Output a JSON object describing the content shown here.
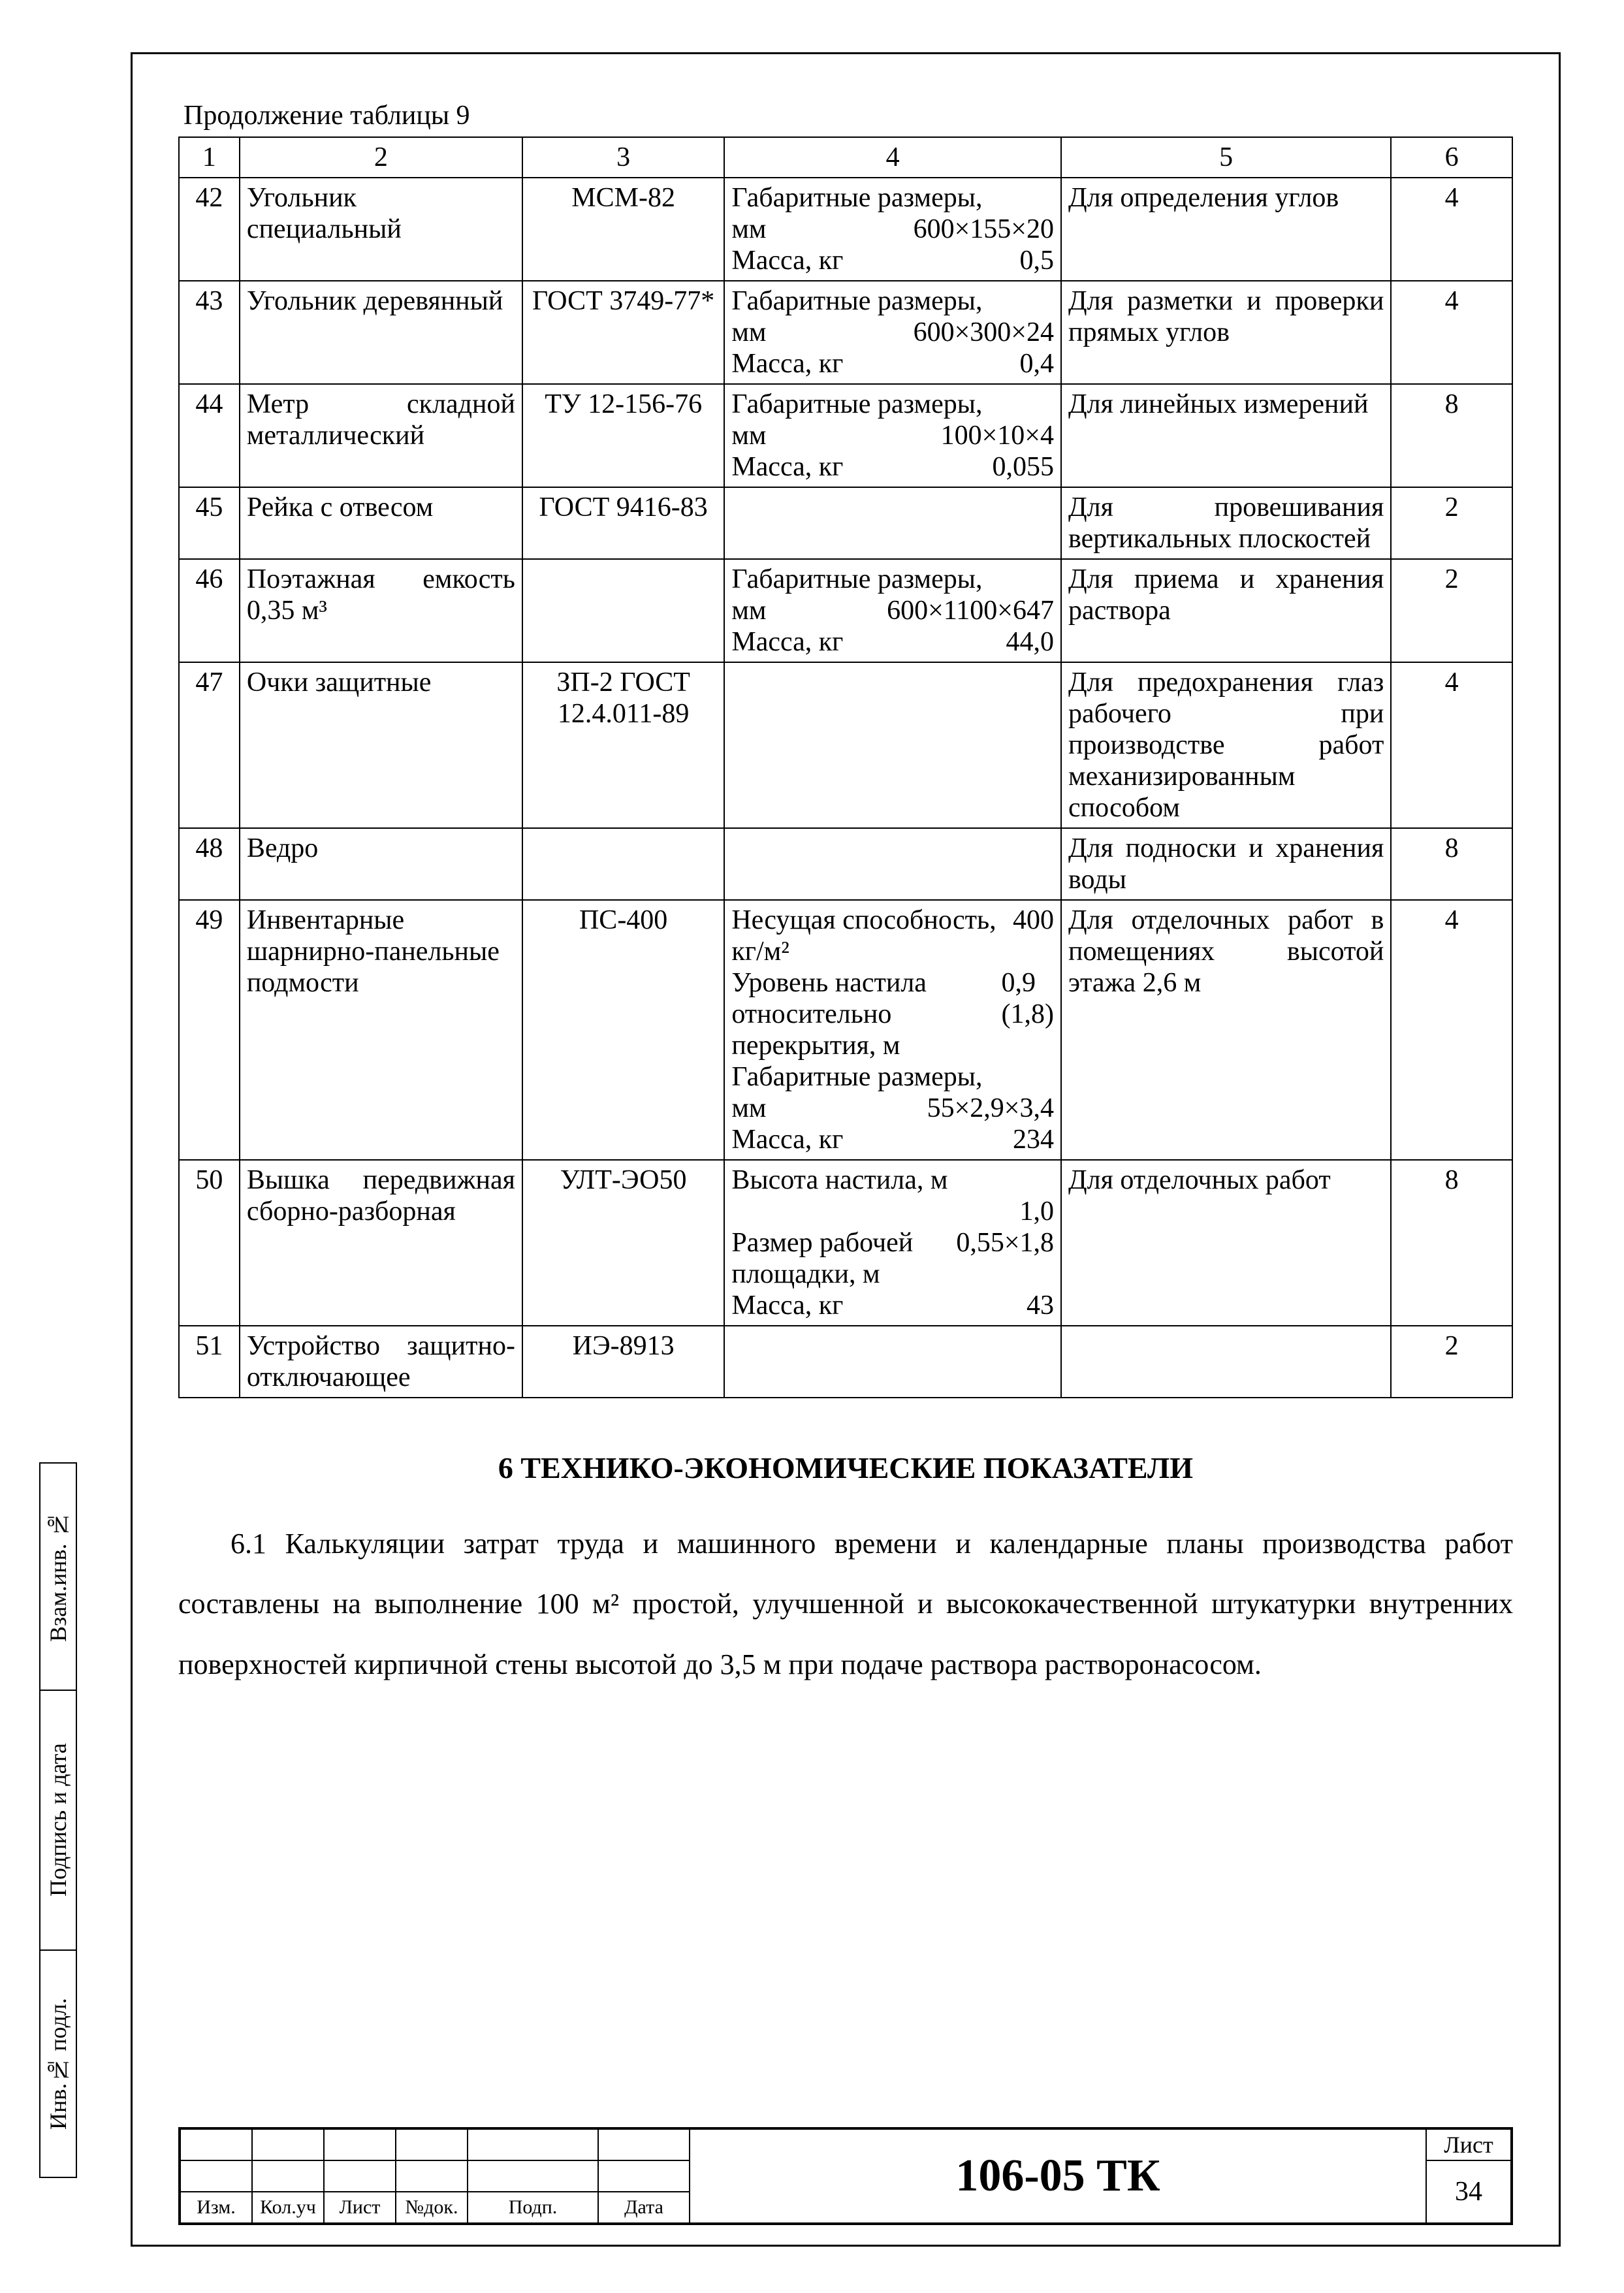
{
  "caption": "Продолжение таблицы 9",
  "headers": [
    "1",
    "2",
    "3",
    "4",
    "5",
    "6"
  ],
  "rows": [
    {
      "n": "42",
      "name": "Угольник специальный",
      "code": "МСМ-82",
      "spec_l1_label": "Габаритные размеры,",
      "spec_l2_label": "мм",
      "spec_l2_val": "600×155×20",
      "spec_l3_label": "Масса, кг",
      "spec_l3_val": "0,5",
      "purpose": "Для определения углов",
      "qty": "4"
    },
    {
      "n": "43",
      "name": "Угольник деревянный",
      "code": "ГОСТ 3749-77*",
      "spec_l1_label": "Габаритные размеры,",
      "spec_l2_label": "мм",
      "spec_l2_val": "600×300×24",
      "spec_l3_label": "Масса, кг",
      "spec_l3_val": "0,4",
      "purpose": "Для разметки и проверки прямых углов",
      "qty": "4"
    },
    {
      "n": "44",
      "name": "Метр складной металлический",
      "code": "ТУ 12-156-76",
      "spec_l1_label": "Габаритные размеры,",
      "spec_l2_label": "мм",
      "spec_l2_val": "100×10×4",
      "spec_l3_label": "Масса, кг",
      "spec_l3_val": "0,055",
      "purpose": "Для линейных измерений",
      "qty": "8"
    },
    {
      "n": "45",
      "name": "Рейка с отвесом",
      "code": "ГОСТ 9416-83",
      "spec_l1_label": "",
      "spec_l2_label": "",
      "spec_l2_val": "",
      "spec_l3_label": "",
      "spec_l3_val": "",
      "purpose": "Для провешивания вертикальных плоскостей",
      "qty": "2"
    },
    {
      "n": "46",
      "name": "Поэтажная емкость 0,35 м³",
      "code": "",
      "spec_l1_label": "Габаритные размеры,",
      "spec_l2_label": "мм",
      "spec_l2_val": "600×1100×647",
      "spec_l3_label": "Масса, кг",
      "spec_l3_val": "44,0",
      "purpose": "Для приема и хранения раствора",
      "qty": "2"
    },
    {
      "n": "47",
      "name": "Очки защитные",
      "code": "ЗП-2 ГОСТ 12.4.011-89",
      "spec_l1_label": "",
      "spec_l2_label": "",
      "spec_l2_val": "",
      "spec_l3_label": "",
      "spec_l3_val": "",
      "purpose": "Для предохранения глаз рабочего при производстве работ механизированным способом",
      "qty": "4"
    },
    {
      "n": "48",
      "name": "Ведро",
      "code": "",
      "spec_l1_label": "",
      "spec_l2_label": "",
      "spec_l2_val": "",
      "spec_l3_label": "",
      "spec_l3_val": "",
      "purpose": "Для подноски и хранения воды",
      "qty": "8"
    },
    {
      "n": "49",
      "name": "Инвентарные шарнирно-панельные подмости",
      "code": "ПС-400",
      "spec_custom": "true",
      "spec49_l1": "Несущая способность, кг/м²",
      "spec49_l1v": "400",
      "spec49_l2": "Уровень настила относительно перекрытия, м",
      "spec49_l2v": "0,9 (1,8)",
      "spec49_l3": "Габаритные размеры,",
      "spec49_l3b": "мм",
      "spec49_l3v": "55×2,9×3,4",
      "spec49_l4": "Масса, кг",
      "spec49_l4v": "234",
      "purpose": "Для отделочных работ в помещениях высотой этажа 2,6 м",
      "qty": "4"
    },
    {
      "n": "50",
      "name": "Вышка передвижная сборно-разборная",
      "code": "УЛТ-ЭО50",
      "spec_custom": "true50",
      "spec50_l1": "Высота настила, м",
      "spec50_l1v": "1,0",
      "spec50_l2": "Размер рабочей площадки, м",
      "spec50_l2v": "0,55×1,8",
      "spec50_l3": "Масса, кг",
      "spec50_l3v": "43",
      "purpose": "Для отделочных работ",
      "qty": "8"
    },
    {
      "n": "51",
      "name": "Устройство защитно-отключающее",
      "code": "ИЭ-8913",
      "spec_l1_label": "",
      "spec_l2_label": "",
      "spec_l2_val": "",
      "spec_l3_label": "",
      "spec_l3_val": "",
      "purpose": "",
      "qty": "2"
    }
  ],
  "section_title": "6 ТЕХНИКО-ЭКОНОМИЧЕСКИЕ ПОКАЗАТЕЛИ",
  "body_text": "6.1 Калькуляции затрат труда и машинного времени и календарные планы производства работ составлены на выполнение 100 м² простой, улучшенной и высококачественной штукатурки внутренних поверхностей кирпичной стены высотой до 3,5 м при подаче раствора растворонасосом.",
  "doc_code": "106-05 ТК",
  "sheet_label": "Лист",
  "sheet_no": "34",
  "stamp_cols": [
    "Изм.",
    "Кол.уч",
    "Лист",
    "№док.",
    "Подп.",
    "Дата"
  ],
  "side": {
    "c1": "Инв.№ подл.",
    "c2": "Подпись и дата",
    "c3": "Взам.инв. №"
  }
}
